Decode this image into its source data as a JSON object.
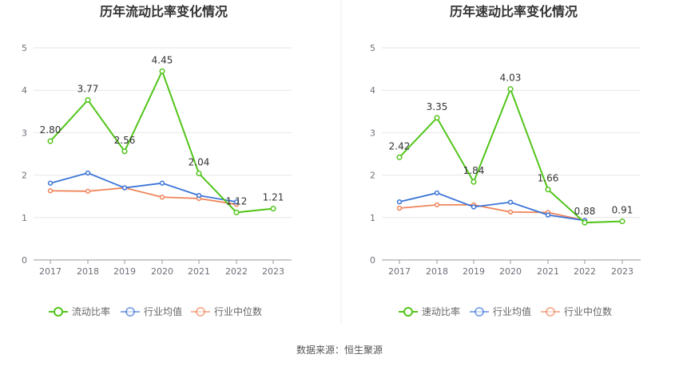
{
  "source": "数据来源：恒生聚源",
  "colors": {
    "main": "#52c41a",
    "avg": "#3a74d8",
    "median": "#f0845a",
    "grid": "#e6e6e6",
    "axis": "#999999"
  },
  "chart_data": [
    {
      "type": "line",
      "title": "历年流动比率变化情况",
      "categories": [
        "2017",
        "2018",
        "2019",
        "2020",
        "2021",
        "2022",
        "2023"
      ],
      "ylim": [
        0,
        5
      ],
      "yticks": [
        "0",
        "1",
        "2",
        "3",
        "4",
        "5"
      ],
      "series": [
        {
          "name": "流动比率",
          "values": [
            2.8,
            3.77,
            2.56,
            4.45,
            2.04,
            1.12,
            1.21
          ],
          "labels": [
            "2.80",
            "3.77",
            "2.56",
            "4.45",
            "2.04",
            "1.12",
            "1.21"
          ]
        },
        {
          "name": "行业均值",
          "values": [
            1.81,
            2.05,
            1.7,
            1.81,
            1.52,
            1.37,
            null
          ]
        },
        {
          "name": "行业中位数",
          "values": [
            1.63,
            1.62,
            1.7,
            1.48,
            1.45,
            1.31,
            null
          ]
        }
      ]
    },
    {
      "type": "line",
      "title": "历年速动比率变化情况",
      "categories": [
        "2017",
        "2018",
        "2019",
        "2020",
        "2021",
        "2022",
        "2023"
      ],
      "ylim": [
        0,
        5
      ],
      "yticks": [
        "0",
        "1",
        "2",
        "3",
        "4",
        "5"
      ],
      "series": [
        {
          "name": "速动比率",
          "values": [
            2.42,
            3.35,
            1.84,
            4.03,
            1.66,
            0.88,
            0.91
          ],
          "labels": [
            "2.42",
            "3.35",
            "1.84",
            "4.03",
            "1.66",
            "0.88",
            "0.91"
          ]
        },
        {
          "name": "行业均值",
          "values": [
            1.37,
            1.58,
            1.25,
            1.36,
            1.06,
            0.93,
            null
          ]
        },
        {
          "name": "行业中位数",
          "values": [
            1.22,
            1.3,
            1.3,
            1.13,
            1.12,
            0.93,
            null
          ]
        }
      ]
    }
  ]
}
